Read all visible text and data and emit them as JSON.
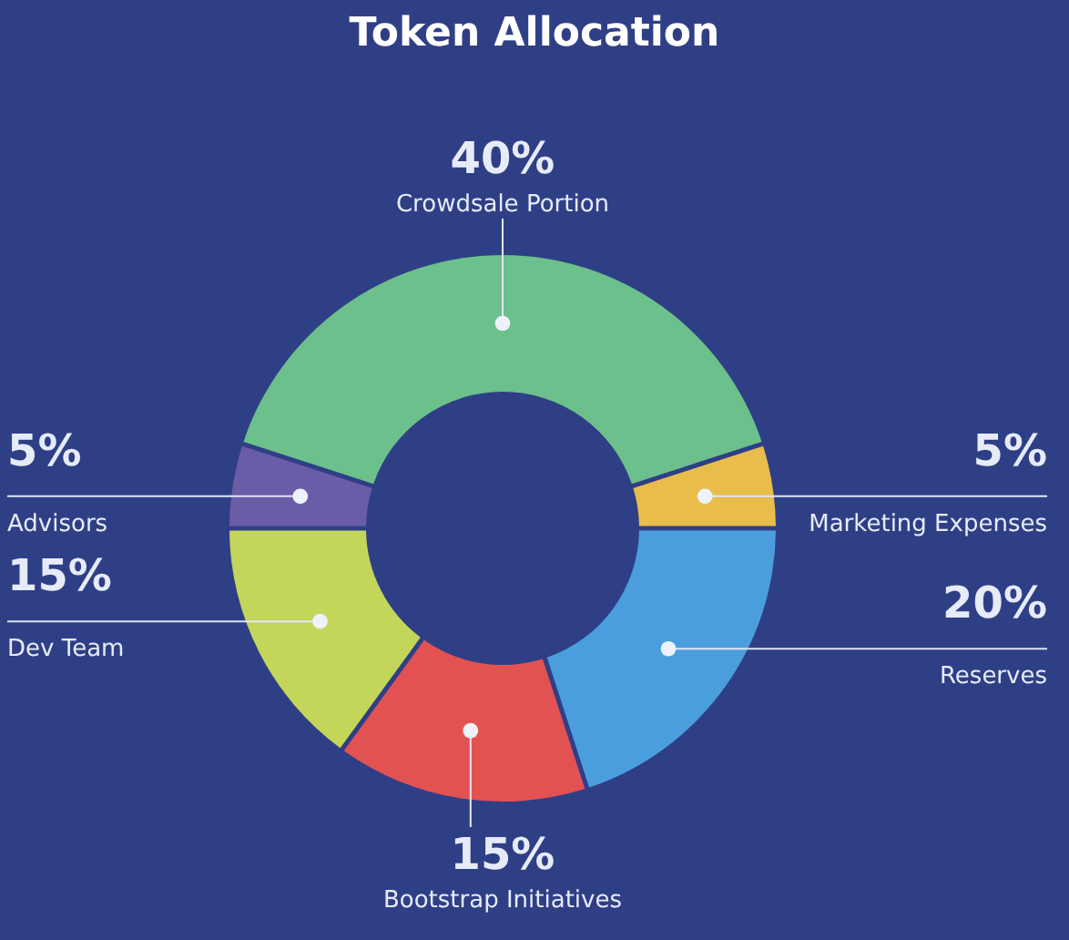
{
  "chart_data": {
    "type": "donut",
    "title": "Token Allocation",
    "categories": [
      "Crowdsale Portion",
      "Marketing Expenses",
      "Reserves",
      "Bootstrap Initiatives",
      "Dev Team",
      "Advisors"
    ],
    "values": [
      40,
      5,
      20,
      15,
      15,
      5
    ],
    "value_labels": [
      "40%",
      "5%",
      "20%",
      "15%",
      "15%",
      "5%"
    ],
    "colors": [
      "#6cc08b",
      "#e9bd4c",
      "#4a9ede",
      "#e35252",
      "#c3d65a",
      "#6b5ca8"
    ],
    "legend": false
  }
}
